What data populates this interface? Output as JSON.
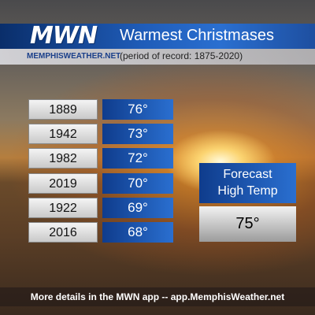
{
  "header": {
    "logo": "MWN",
    "site": "MEMPHISWEATHER.NET",
    "title": "Warmest Christmases",
    "subtitle": "(period of record: 1875-2020)"
  },
  "table": {
    "rows": [
      [
        "1889",
        "76°"
      ],
      [
        "1942",
        "73°"
      ],
      [
        "1982",
        "72°"
      ],
      [
        "2019",
        "70°"
      ],
      [
        "1922",
        "69°"
      ],
      [
        "2016",
        "68°"
      ]
    ]
  },
  "forecast": {
    "label_line1": "Forecast",
    "label_line2": "High Temp",
    "value": "75°"
  },
  "footer": "More details in the MWN app -- app.MemphisWeather.net"
}
